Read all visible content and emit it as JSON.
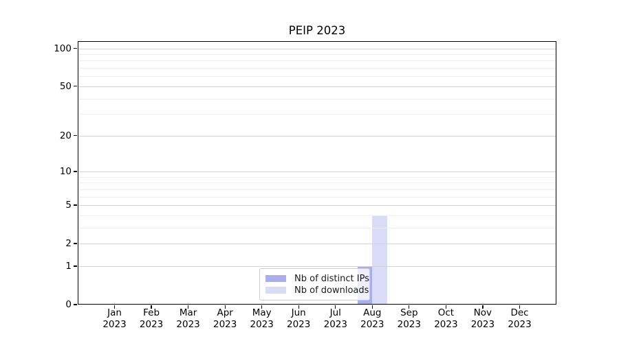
{
  "figure": {
    "title": "PEIP 2023"
  },
  "legend": {
    "items": [
      {
        "label": "Nb of distinct IPs",
        "color": "#a9aeec"
      },
      {
        "label": "Nb of downloads",
        "color": "#d9dbf7"
      }
    ]
  },
  "axes": {
    "y_major_tick_labels": [
      "100",
      "50",
      "20",
      "10",
      "5",
      "2",
      "1",
      "0"
    ],
    "x_year_label": "2023"
  },
  "chart_data": {
    "type": "bar",
    "title": "PEIP 2023",
    "categories": [
      "Jan",
      "Feb",
      "Mar",
      "Apr",
      "May",
      "Jun",
      "Jul",
      "Aug",
      "Sep",
      "Oct",
      "Nov",
      "Dec"
    ],
    "category_year": "2023",
    "series": [
      {
        "name": "Nb of distinct IPs",
        "color": "#a9aeec",
        "values": [
          0,
          0,
          0,
          0,
          0,
          0,
          0,
          1,
          0,
          0,
          0,
          0
        ]
      },
      {
        "name": "Nb of downloads",
        "color": "#d9dbf7",
        "values": [
          0,
          0,
          0,
          0,
          0,
          0,
          0,
          4,
          0,
          0,
          0,
          0
        ]
      }
    ],
    "xlabel": "",
    "ylabel": "",
    "yscale": "log1p",
    "ylim": [
      0,
      114
    ],
    "y_major_ticks": [
      100,
      50,
      20,
      10,
      5,
      2,
      1,
      0
    ],
    "y_minor_ticks": [
      90,
      80,
      70,
      60,
      40,
      30,
      9,
      8,
      7,
      6,
      4,
      3
    ],
    "grid": true,
    "grid_above_bars": true,
    "legend_position": "lower center"
  }
}
